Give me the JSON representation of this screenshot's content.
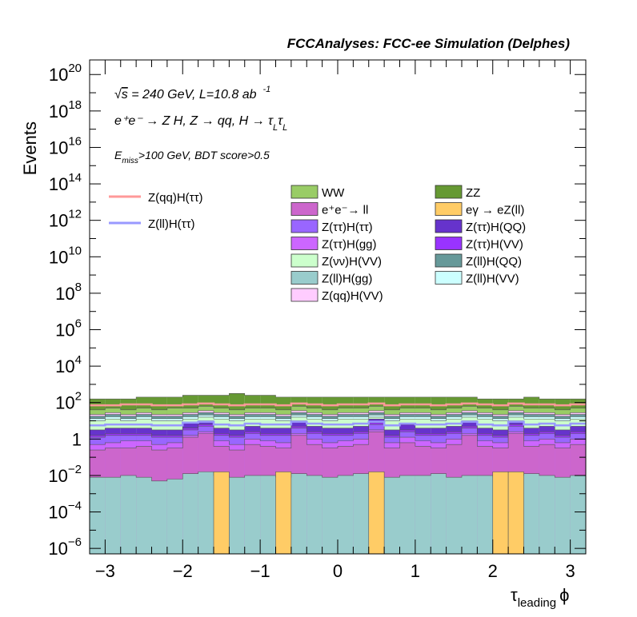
{
  "chart_data": {
    "type": "bar",
    "header": "FCCAnalyses: FCC-ee Simulation (Delphes)",
    "ylabel": "Events",
    "xlabel_main": "τ",
    "xlabel_sub": "leading",
    "xlabel_tail": "ϕ",
    "xlim": [
      -3.2,
      3.2
    ],
    "ylim_log10": [
      -6.3,
      20.8
    ],
    "log_y": true,
    "x_ticks": [
      {
        "v": -3,
        "label": "−3"
      },
      {
        "v": -2,
        "label": "−2"
      },
      {
        "v": -1,
        "label": "−1"
      },
      {
        "v": 0,
        "label": "0"
      },
      {
        "v": 1,
        "label": "1"
      },
      {
        "v": 2,
        "label": "2"
      },
      {
        "v": 3,
        "label": "3"
      }
    ],
    "y_ticks": [
      {
        "e": -6,
        "base": "10",
        "exp": "−6"
      },
      {
        "e": -4,
        "base": "10",
        "exp": "−4"
      },
      {
        "e": -2,
        "base": "10",
        "exp": "−2"
      },
      {
        "e": 0,
        "base": "1",
        "exp": ""
      },
      {
        "e": 2,
        "base": "10",
        "exp": "2"
      },
      {
        "e": 4,
        "base": "10",
        "exp": "4"
      },
      {
        "e": 6,
        "base": "10",
        "exp": "6"
      },
      {
        "e": 8,
        "base": "10",
        "exp": "8"
      },
      {
        "e": 10,
        "base": "10",
        "exp": "10"
      },
      {
        "e": 12,
        "base": "10",
        "exp": "12"
      },
      {
        "e": 14,
        "base": "10",
        "exp": "14"
      },
      {
        "e": 16,
        "base": "10",
        "exp": "16"
      },
      {
        "e": 18,
        "base": "10",
        "exp": "18"
      },
      {
        "e": 20,
        "base": "10",
        "exp": "20"
      }
    ],
    "annotations": {
      "line1_sqrt": "√",
      "line1_s": "s",
      "line1": " = 240 GeV, L=10.8 ab",
      "line1_exp": "-1",
      "line2": "e⁺e⁻ → Z H, Z → qq, H → τ",
      "line2_sub1": "L",
      "line2_mid": "τ",
      "line2_sub2": "L",
      "line3_main": "E",
      "line3_sub": "miss",
      "line3_rest": ">100 GeV, BDT score>0.5"
    },
    "bins": {
      "n": 32,
      "min": -3.2,
      "max": 3.2
    },
    "layer_order": [
      "Z(ll)H(gg)",
      "e⁺e⁻→ ll",
      "Z(ττ)H(gg)",
      "Z(ττ)H(ττ)",
      "Z(ττ)H(VV)",
      "Z(ττ)H(QQ)",
      "Z(νν)H(VV)",
      "Z(ll)H(VV)",
      "Z(ll)H(QQ)",
      "Z(qq)H(VV)",
      "WW",
      "ZZ"
    ],
    "stack_layers": [
      {
        "name": "Z(ll)H(gg)",
        "color": "#99cccc",
        "cum_log10": [
          -2.1,
          -2.1,
          -2.0,
          -2.1,
          -2.3,
          -2.2,
          -1.9,
          -1.8,
          -2.0,
          -2.1,
          -2.0,
          -2.0,
          -2.1,
          -1.9,
          -2.0,
          -2.1,
          -2.0,
          -1.9,
          -2.0,
          -2.1,
          -2.0,
          -2.0,
          -1.9,
          -2.1,
          -2.0,
          -2.0,
          -2.1,
          -2.0,
          -1.9,
          -2.0,
          -2.1,
          -2.0
        ]
      },
      {
        "name": "e⁺e⁻→ ll",
        "color": "#cc66cc",
        "cum_log10": [
          -0.6,
          -0.5,
          -0.5,
          -0.4,
          -0.6,
          -0.5,
          0.1,
          0.3,
          -0.4,
          -0.6,
          -0.3,
          -0.4,
          -0.5,
          0.2,
          -0.3,
          -0.5,
          -0.4,
          -0.3,
          0.4,
          -0.5,
          -0.2,
          -0.4,
          -0.5,
          -0.3,
          0.2,
          -0.4,
          -0.5,
          0.3,
          -0.4,
          -0.3,
          -0.5,
          -0.3
        ]
      },
      {
        "name": "Z(ττ)H(gg)",
        "color": "#cc66ff",
        "cum_log10": [
          -0.3,
          -0.2,
          -0.1,
          -0.1,
          -0.3,
          -0.2,
          0.2,
          0.4,
          -0.1,
          -0.3,
          0.0,
          -0.1,
          -0.2,
          0.3,
          0.0,
          -0.2,
          -0.1,
          0.0,
          0.5,
          -0.2,
          0.1,
          -0.1,
          -0.2,
          0.0,
          0.3,
          -0.1,
          -0.2,
          0.4,
          -0.1,
          0.0,
          -0.2,
          0.0
        ]
      },
      {
        "name": "Z(ττ)H(ττ)",
        "color": "#9966ff",
        "cum_log10": [
          0.1,
          0.2,
          0.2,
          0.2,
          0.1,
          0.1,
          0.5,
          0.7,
          0.2,
          0.1,
          0.3,
          0.2,
          0.2,
          0.6,
          0.3,
          0.2,
          0.2,
          0.3,
          0.8,
          0.1,
          0.4,
          0.2,
          0.2,
          0.3,
          0.6,
          0.2,
          0.1,
          0.7,
          0.2,
          0.3,
          0.1,
          0.3
        ]
      },
      {
        "name": "Z(ττ)H(VV)",
        "color": "#9933ff",
        "cum_log10": [
          0.2,
          0.3,
          0.3,
          0.3,
          0.2,
          0.2,
          0.6,
          0.8,
          0.3,
          0.2,
          0.4,
          0.3,
          0.3,
          0.7,
          0.4,
          0.3,
          0.3,
          0.4,
          0.9,
          0.2,
          0.5,
          0.3,
          0.3,
          0.4,
          0.7,
          0.3,
          0.2,
          0.8,
          0.3,
          0.4,
          0.2,
          0.4
        ]
      },
      {
        "name": "Z(ττ)H(QQ)",
        "color": "#6633cc",
        "cum_log10": [
          0.5,
          0.6,
          0.6,
          0.6,
          0.5,
          0.5,
          0.9,
          1.0,
          0.6,
          0.5,
          0.7,
          0.6,
          0.6,
          1.0,
          0.7,
          0.6,
          0.6,
          0.7,
          1.1,
          0.5,
          0.8,
          0.6,
          0.6,
          0.7,
          1.0,
          0.6,
          0.5,
          1.0,
          0.6,
          0.7,
          0.5,
          0.7
        ]
      },
      {
        "name": "Z(νν)H(VV)",
        "color": "#ccffcc",
        "cum_log10": [
          1.0,
          1.1,
          1.0,
          1.1,
          1.0,
          1.0,
          1.1,
          1.2,
          1.1,
          1.0,
          1.1,
          1.1,
          1.0,
          1.2,
          1.1,
          1.0,
          1.1,
          1.1,
          1.2,
          1.0,
          1.1,
          1.1,
          1.0,
          1.1,
          1.2,
          1.1,
          1.0,
          1.2,
          1.1,
          1.1,
          1.0,
          1.1
        ]
      },
      {
        "name": "Z(ll)H(VV)",
        "color": "#ccffff",
        "cum_log10": [
          1.12,
          1.22,
          1.12,
          1.22,
          1.12,
          1.12,
          1.22,
          1.32,
          1.22,
          1.12,
          1.22,
          1.22,
          1.12,
          1.32,
          1.22,
          1.12,
          1.22,
          1.22,
          1.32,
          1.12,
          1.22,
          1.22,
          1.12,
          1.22,
          1.32,
          1.22,
          1.12,
          1.32,
          1.22,
          1.22,
          1.12,
          1.22
        ]
      },
      {
        "name": "Z(ll)H(QQ)",
        "color": "#669999",
        "cum_log10": [
          1.25,
          1.35,
          1.25,
          1.35,
          1.25,
          1.25,
          1.35,
          1.45,
          1.35,
          1.25,
          1.35,
          1.35,
          1.25,
          1.45,
          1.35,
          1.25,
          1.35,
          1.35,
          1.45,
          1.25,
          1.35,
          1.35,
          1.25,
          1.35,
          1.45,
          1.35,
          1.25,
          1.45,
          1.35,
          1.35,
          1.25,
          1.35
        ]
      },
      {
        "name": "Z(qq)H(VV)",
        "color": "#ffccff",
        "cum_log10": [
          1.35,
          1.45,
          1.35,
          1.45,
          1.35,
          1.35,
          1.45,
          1.55,
          1.45,
          1.35,
          1.45,
          1.45,
          1.35,
          1.55,
          1.45,
          1.35,
          1.45,
          1.45,
          1.55,
          1.35,
          1.45,
          1.45,
          1.35,
          1.45,
          1.55,
          1.45,
          1.35,
          1.55,
          1.45,
          1.45,
          1.35,
          1.45
        ]
      },
      {
        "name": "WW",
        "color": "#99cc66",
        "cum_log10": [
          1.6,
          1.7,
          1.6,
          1.7,
          1.6,
          1.7,
          1.7,
          1.8,
          1.7,
          1.6,
          1.7,
          1.7,
          1.6,
          1.8,
          1.7,
          1.6,
          1.7,
          1.7,
          1.8,
          1.6,
          1.7,
          1.7,
          1.6,
          1.7,
          1.8,
          1.7,
          1.6,
          1.8,
          1.7,
          1.7,
          1.6,
          1.7
        ]
      },
      {
        "name": "ZZ",
        "color": "#669933",
        "cum_log10": [
          2.2,
          2.2,
          2.2,
          2.3,
          2.3,
          2.3,
          2.4,
          2.4,
          2.4,
          2.5,
          2.4,
          2.4,
          2.3,
          2.3,
          2.3,
          2.3,
          2.3,
          2.3,
          2.3,
          2.3,
          2.3,
          2.3,
          2.3,
          2.3,
          2.3,
          2.2,
          2.2,
          2.2,
          2.3,
          2.2,
          2.2,
          2.2
        ]
      }
    ],
    "egamma_series": {
      "name": "eγ → eZ(ll)",
      "color": "#ffcc66",
      "bins": [
        8,
        12,
        18,
        26,
        27
      ],
      "top_log10": -1.8
    },
    "line_series": [
      {
        "name": "Z(qq)H(ττ)",
        "color": "#ff9999",
        "log10": [
          1.85,
          1.85,
          1.9,
          1.9,
          1.85,
          1.85,
          1.9,
          1.95,
          1.9,
          1.85,
          1.9,
          1.9,
          1.85,
          1.95,
          1.9,
          1.85,
          1.9,
          1.9,
          1.95,
          1.85,
          1.9,
          1.9,
          1.85,
          1.9,
          1.95,
          1.9,
          1.85,
          1.95,
          1.9,
          1.9,
          1.85,
          1.9
        ]
      },
      {
        "name": "Z(ll)H(ττ)",
        "color": "#9999ff",
        "log10": [
          0.75,
          0.8,
          0.8,
          0.8,
          0.75,
          0.75,
          0.9,
          0.95,
          0.8,
          0.75,
          0.85,
          0.8,
          0.8,
          0.95,
          0.85,
          0.8,
          0.8,
          0.85,
          0.95,
          0.75,
          0.85,
          0.8,
          0.8,
          0.85,
          0.95,
          0.8,
          0.75,
          0.95,
          0.8,
          0.85,
          0.75,
          0.85
        ]
      }
    ],
    "legend_lines": [
      {
        "label": "Z(qq)H(ττ)",
        "color": "#ff9999"
      },
      {
        "label": "Z(ll)H(ττ)",
        "color": "#9999ff"
      }
    ],
    "legend_boxes": [
      {
        "label": "WW",
        "color": "#99cc66"
      },
      {
        "label": "ZZ",
        "color": "#669933"
      },
      {
        "label": "e⁺e⁻→ ll",
        "color": "#cc66cc"
      },
      {
        "label": "eγ → eZ(ll)",
        "color": "#ffcc66"
      },
      {
        "label": "Z(ττ)H(ττ)",
        "color": "#9966ff"
      },
      {
        "label": "Z(ττ)H(QQ)",
        "color": "#6633cc"
      },
      {
        "label": "Z(ττ)H(gg)",
        "color": "#cc66ff"
      },
      {
        "label": "Z(ττ)H(VV)",
        "color": "#9933ff"
      },
      {
        "label": "Z(νν)H(VV)",
        "color": "#ccffcc"
      },
      {
        "label": "Z(ll)H(QQ)",
        "color": "#669999"
      },
      {
        "label": "Z(ll)H(gg)",
        "color": "#99cccc"
      },
      {
        "label": "Z(ll)H(VV)",
        "color": "#ccffff"
      },
      {
        "label": "Z(qq)H(VV)",
        "color": "#ffccff"
      }
    ]
  }
}
